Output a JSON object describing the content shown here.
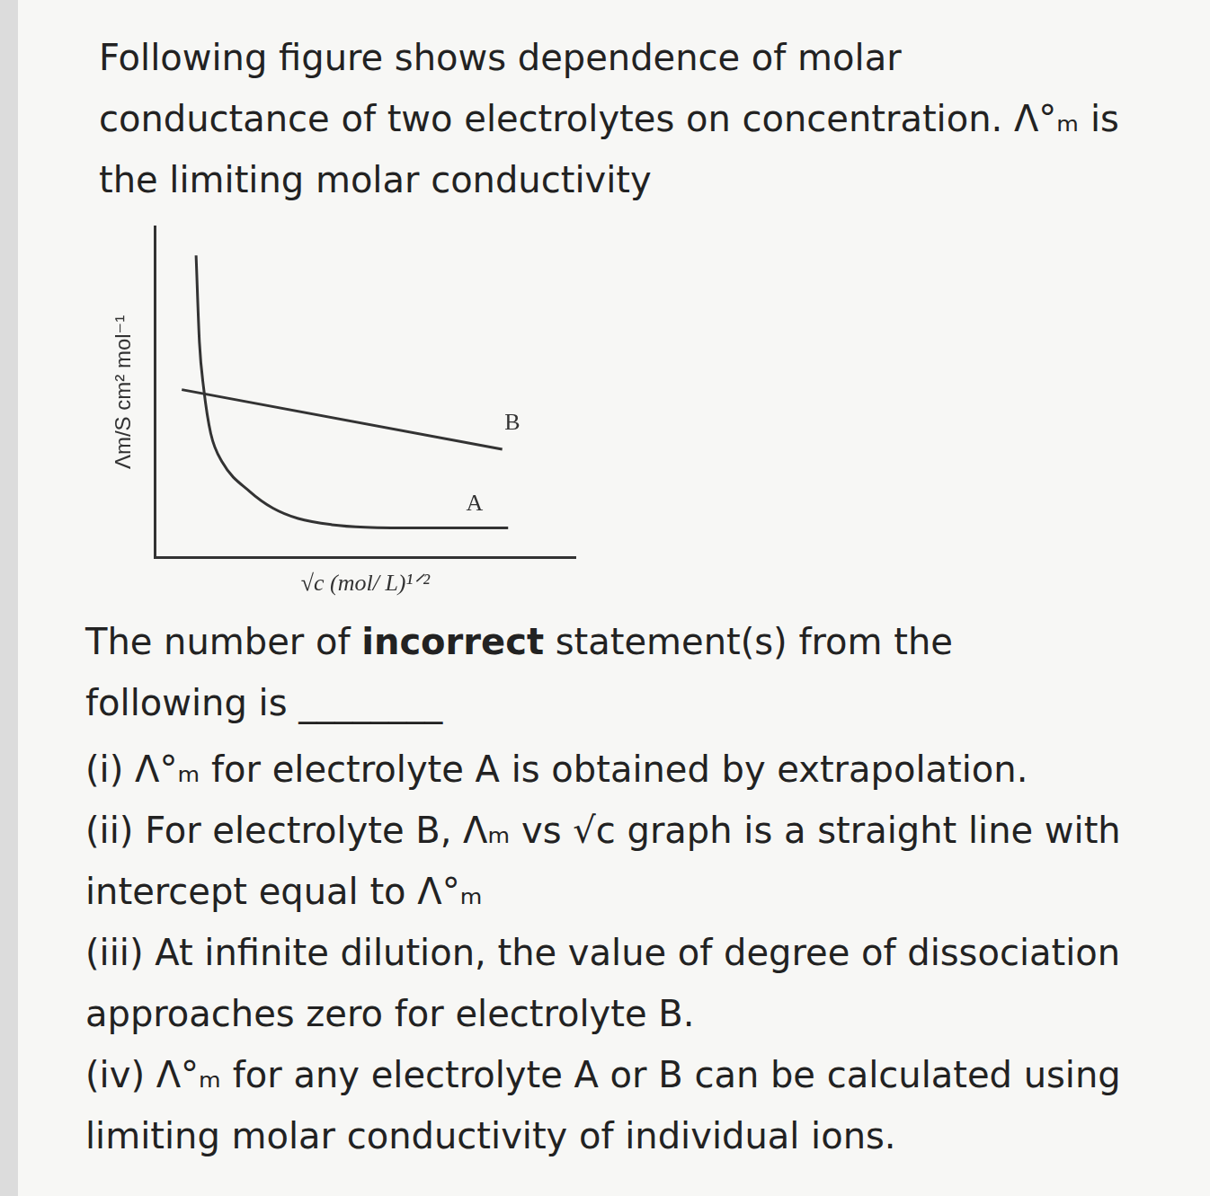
{
  "intro": "Following figure shows dependence of molar conductance of two electrolytes on concentration. Λ°ₘ is the limiting molar conductivity",
  "chart_data": {
    "type": "line",
    "x_label": "√c (mol/ L)¹ᐟ²",
    "y_label": "Λm/S cm² mol⁻¹",
    "xlim": [
      0,
      10
    ],
    "ylim": [
      0,
      8
    ],
    "grid": false,
    "tick_labels": false,
    "series": [
      {
        "color": "#333333",
        "x": [
          0.63,
          8.26
        ],
        "values": [
          4.06,
          2.62
        ]
      },
      {
        "color": "#333333",
        "x": [
          0.97,
          1.05,
          1.15,
          1.32,
          1.6,
          2.25,
          2.8,
          3.4,
          4.2,
          5.0,
          6.5,
          8.4
        ],
        "values": [
          7.3,
          5.2,
          4.1,
          3.0,
          2.3,
          1.6,
          1.2,
          0.95,
          0.8,
          0.74,
          0.72,
          0.72
        ]
      }
    ],
    "annotations": [
      {
        "text": "B",
        "x": 8.5,
        "y": 3.25
      },
      {
        "text": "A",
        "x": 7.6,
        "y": 1.3
      }
    ]
  },
  "question": {
    "before": "The number of ",
    "bold": "incorrect",
    "after": " statement(s) from the following is ________"
  },
  "statements": [
    {
      "label": "(i)",
      "text": "Λ°ₘ for electrolyte A is obtained by extrapolation."
    },
    {
      "label": "(ii)",
      "text": "For electrolyte B, Λₘ vs √c graph is a straight line with intercept equal to Λ°ₘ"
    },
    {
      "label": "(iii)",
      "text": "At infinite dilution, the value of degree of dissociation approaches zero for electrolyte B."
    },
    {
      "label": "(iv)",
      "text": "Λ°ₘ for any electrolyte A or B can be calculated using limiting molar conductivity of individual ions."
    }
  ]
}
